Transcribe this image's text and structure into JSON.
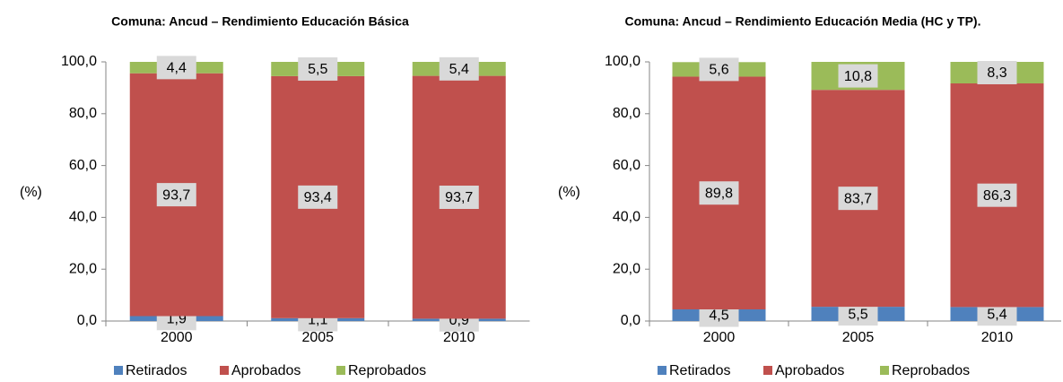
{
  "chart_data": [
    {
      "type": "stacked_bar",
      "title": "Comuna: Ancud – Rendimiento Educación Básica",
      "y_label": "(%)",
      "categories": [
        "2000",
        "2005",
        "2010"
      ],
      "series": [
        {
          "name": "Retirados",
          "color": "#4f81bd",
          "values": [
            1.9,
            1.1,
            0.9
          ],
          "value_labels": [
            "1,9",
            "1,1",
            "0,9"
          ]
        },
        {
          "name": "Aprobados",
          "color": "#c0504d",
          "values": [
            93.7,
            93.4,
            93.7
          ],
          "value_labels": [
            "93,7",
            "93,4",
            "93,7"
          ]
        },
        {
          "name": "Reprobados",
          "color": "#9bbb59",
          "values": [
            4.4,
            5.5,
            5.4
          ],
          "value_labels": [
            "4,4",
            "5,5",
            "5,4"
          ]
        }
      ],
      "ylim": [
        0,
        100
      ],
      "yticks": [
        {
          "value": 0,
          "label": "0,0"
        },
        {
          "value": 20,
          "label": "20,0"
        },
        {
          "value": 40,
          "label": "40,0"
        },
        {
          "value": 60,
          "label": "60,0"
        },
        {
          "value": 80,
          "label": "80,0"
        },
        {
          "value": 100,
          "label": "100,0"
        }
      ],
      "legend": "bottom"
    },
    {
      "type": "stacked_bar",
      "title": "Comuna: Ancud – Rendimiento Educación Media (HC y TP).",
      "y_label": "(%)",
      "categories": [
        "2000",
        "2005",
        "2010"
      ],
      "series": [
        {
          "name": "Retirados",
          "color": "#4f81bd",
          "values": [
            4.5,
            5.5,
            5.4
          ],
          "value_labels": [
            "4,5",
            "5,5",
            "5,4"
          ]
        },
        {
          "name": "Aprobados",
          "color": "#c0504d",
          "values": [
            89.8,
            83.7,
            86.3
          ],
          "value_labels": [
            "89,8",
            "83,7",
            "86,3"
          ]
        },
        {
          "name": "Reprobados",
          "color": "#9bbb59",
          "values": [
            5.6,
            10.8,
            8.3
          ],
          "value_labels": [
            "5,6",
            "10,8",
            "8,3"
          ]
        }
      ],
      "ylim": [
        0,
        100
      ],
      "yticks": [
        {
          "value": 0,
          "label": "0,0"
        },
        {
          "value": 20,
          "label": "20,0"
        },
        {
          "value": 40,
          "label": "40,0"
        },
        {
          "value": 60,
          "label": "60,0"
        },
        {
          "value": 80,
          "label": "80,0"
        },
        {
          "value": 100,
          "label": "100,0"
        }
      ],
      "legend": "bottom"
    }
  ]
}
